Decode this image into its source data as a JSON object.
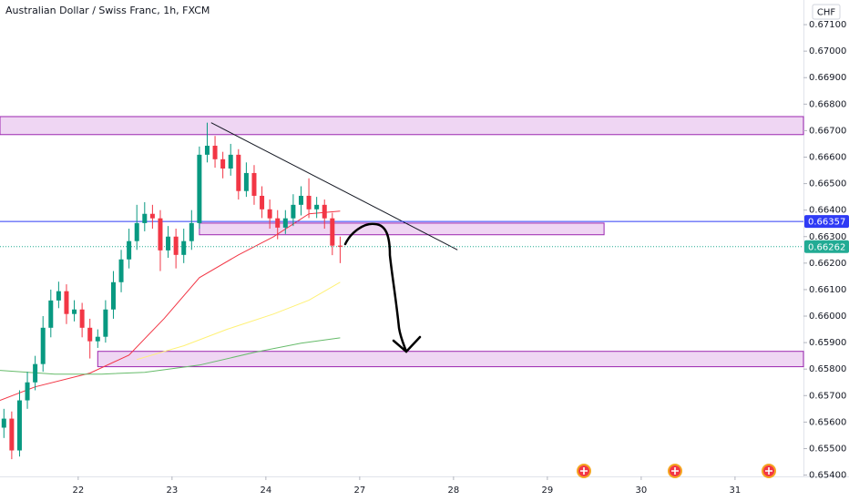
{
  "chart_data": {
    "type": "candlestick",
    "title": "Australian Dollar / Swiss Franc, 1h, FXCM",
    "currency": "CHF",
    "up_color": "#089981",
    "down_color": "#f23645",
    "xlim": [
      -20,
      185.5
    ],
    "ylim": [
      0.65395,
      0.67193
    ],
    "xticks": [
      {
        "value": 0,
        "label": "22"
      },
      {
        "value": 24,
        "label": "23"
      },
      {
        "value": 48,
        "label": "24"
      },
      {
        "value": 72,
        "label": "27"
      },
      {
        "value": 96,
        "label": "28"
      },
      {
        "value": 120,
        "label": "29"
      },
      {
        "value": 144,
        "label": "30"
      },
      {
        "value": 168,
        "label": "31"
      }
    ],
    "yticks": [
      {
        "value": 0.671,
        "label": "0.67100"
      },
      {
        "value": 0.67,
        "label": "0.67000"
      },
      {
        "value": 0.669,
        "label": "0.66900"
      },
      {
        "value": 0.668,
        "label": "0.66800"
      },
      {
        "value": 0.667,
        "label": "0.66700"
      },
      {
        "value": 0.666,
        "label": "0.66600"
      },
      {
        "value": 0.665,
        "label": "0.66500"
      },
      {
        "value": 0.664,
        "label": "0.66400"
      },
      {
        "value": 0.663,
        "label": "0.66300"
      },
      {
        "value": 0.662,
        "label": "0.66200"
      },
      {
        "value": 0.661,
        "label": "0.66100"
      },
      {
        "value": 0.66,
        "label": "0.66000"
      },
      {
        "value": 0.659,
        "label": "0.65900"
      },
      {
        "value": 0.658,
        "label": "0.65800"
      },
      {
        "value": 0.657,
        "label": "0.65700"
      },
      {
        "value": 0.656,
        "label": "0.65600"
      },
      {
        "value": 0.655,
        "label": "0.65500"
      },
      {
        "value": 0.654,
        "label": "0.65400"
      }
    ],
    "x": [
      -19,
      -17,
      -15,
      -13,
      -11,
      -9,
      -7,
      -5,
      -3,
      -1,
      1,
      3,
      5,
      7,
      9,
      11,
      13,
      15,
      17,
      19,
      21,
      23,
      25,
      27,
      29,
      31,
      33,
      35,
      37,
      39,
      41,
      43,
      45,
      47,
      49,
      51,
      53,
      55,
      57,
      59,
      61,
      63,
      65,
      67
    ],
    "open": [
      0.65579,
      0.65613,
      0.65493,
      0.65682,
      0.6575,
      0.65819,
      0.65956,
      0.66059,
      0.66094,
      0.66008,
      0.66025,
      0.65956,
      0.65905,
      0.65922,
      0.66025,
      0.66128,
      0.66214,
      0.66283,
      0.66351,
      0.66386,
      0.66369,
      0.66248,
      0.663,
      0.66231,
      0.66283,
      0.66351,
      0.66609,
      0.66643,
      0.66592,
      0.66557,
      0.66609,
      0.66472,
      0.6654,
      0.66454,
      0.66403,
      0.66369,
      0.66334,
      0.66369,
      0.6642,
      0.66454,
      0.66403,
      0.6642,
      0.66369,
      0.66266
    ],
    "high": [
      0.6565,
      0.6564,
      0.6572,
      0.6579,
      0.6585,
      0.66,
      0.661,
      0.6613,
      0.6612,
      0.6606,
      0.6605,
      0.6599,
      0.6595,
      0.6606,
      0.6617,
      0.6625,
      0.6633,
      0.6642,
      0.6643,
      0.6642,
      0.664,
      0.6634,
      0.6633,
      0.6633,
      0.664,
      0.6664,
      0.6673,
      0.6668,
      0.6662,
      0.6665,
      0.6663,
      0.6658,
      0.6657,
      0.6649,
      0.6644,
      0.664,
      0.664,
      0.6646,
      0.6649,
      0.6652,
      0.6645,
      0.6644,
      0.6639,
      0.663
    ],
    "low": [
      0.6554,
      0.6546,
      0.6547,
      0.6565,
      0.6572,
      0.6579,
      0.6592,
      0.6603,
      0.6597,
      0.6598,
      0.6592,
      0.6584,
      0.6588,
      0.659,
      0.6599,
      0.6609,
      0.6618,
      0.6625,
      0.6632,
      0.6633,
      0.6617,
      0.6622,
      0.6618,
      0.662,
      0.6625,
      0.6633,
      0.6658,
      0.6656,
      0.6652,
      0.6653,
      0.6644,
      0.6645,
      0.6642,
      0.6637,
      0.6633,
      0.6629,
      0.6631,
      0.6634,
      0.6638,
      0.6637,
      0.6637,
      0.6633,
      0.6623,
      0.662
    ],
    "close": [
      0.65613,
      0.65493,
      0.65682,
      0.6575,
      0.65819,
      0.65956,
      0.66059,
      0.66094,
      0.66008,
      0.66025,
      0.65956,
      0.65905,
      0.65922,
      0.66025,
      0.66128,
      0.66214,
      0.66283,
      0.66351,
      0.66386,
      0.66369,
      0.66248,
      0.663,
      0.66231,
      0.66283,
      0.66351,
      0.66609,
      0.66643,
      0.66592,
      0.66557,
      0.66609,
      0.66472,
      0.6654,
      0.66454,
      0.66403,
      0.66369,
      0.66334,
      0.66369,
      0.6642,
      0.66454,
      0.66403,
      0.6642,
      0.66369,
      0.66266,
      0.66262
    ],
    "lines": [
      {
        "color": "#f23645",
        "x": [
          -20,
          -11,
          3,
          13,
          22,
          31,
          41,
          50,
          59,
          67
        ],
        "values": [
          0.65682,
          0.65733,
          0.65785,
          0.65853,
          0.65991,
          0.66145,
          0.66231,
          0.663,
          0.66386,
          0.66396
        ]
      },
      {
        "color": "#fff176",
        "x": [
          15,
          27,
          38,
          50,
          59,
          67
        ],
        "values": [
          0.65836,
          0.65888,
          0.6595,
          0.66008,
          0.6606,
          0.66128
        ]
      },
      {
        "color": "#66bb6a",
        "x": [
          -20,
          -6,
          6,
          17,
          31,
          45,
          57,
          67
        ],
        "values": [
          0.65795,
          0.65781,
          0.65781,
          0.65788,
          0.65815,
          0.65863,
          0.65898,
          0.65918
        ]
      }
    ],
    "zones": [
      {
        "x": [
          -20,
          185.5
        ],
        "low": 0.66685,
        "high": 0.66753
      },
      {
        "x": [
          31,
          134.5
        ],
        "low": 0.66307,
        "high": 0.66351
      },
      {
        "x": [
          5,
          185.5
        ],
        "low": 0.65809,
        "high": 0.65867
      }
    ],
    "zone_fill": "#e9c8ef",
    "zone_stroke": "#9c27b0",
    "trendline": {
      "x": [
        34,
        97
      ],
      "values": [
        0.6673,
        0.6625
      ]
    },
    "price_lines": [
      {
        "value": 0.66357,
        "label": "0.66357",
        "color": "#2f3bf5",
        "style": "solid"
      },
      {
        "value": 0.66262,
        "label": "0.66262",
        "color": "#22ab94",
        "style": "dotted"
      }
    ]
  }
}
